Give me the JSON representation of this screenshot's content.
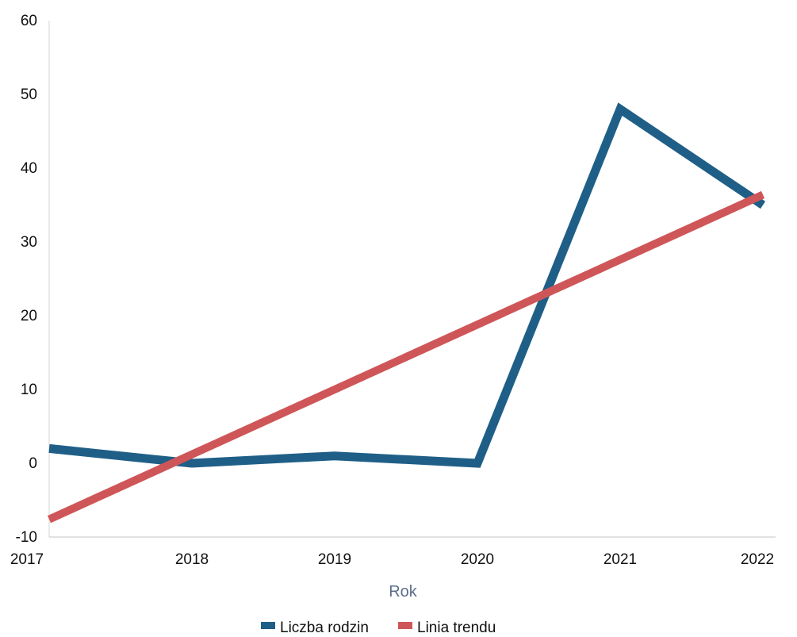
{
  "chart_data": {
    "type": "line",
    "title": "",
    "xlabel": "Rok",
    "ylabel": "",
    "categories": [
      "2017",
      "2018",
      "2019",
      "2020",
      "2021",
      "2022"
    ],
    "x": [
      2017,
      2018,
      2019,
      2020,
      2021,
      2022
    ],
    "ylim": [
      -10,
      60
    ],
    "yticks": [
      -10,
      0,
      10,
      20,
      30,
      40,
      50,
      60
    ],
    "grid": false,
    "legend_position": "bottom-center",
    "series": [
      {
        "name": "Liczba rodzin",
        "values": [
          2,
          0,
          1,
          0,
          48,
          35
        ],
        "color": "#1f5f87"
      },
      {
        "name": "Linia trendu",
        "values": [
          -7.6,
          1.2,
          10,
          18.8,
          27.6,
          36.4
        ],
        "color": "#cf5658"
      }
    ]
  }
}
